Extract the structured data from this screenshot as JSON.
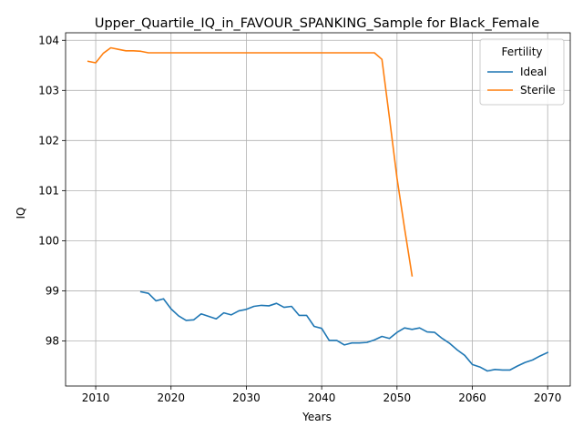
{
  "chart_data": {
    "type": "line",
    "title": "Upper_Quartile_IQ_in_FAVOUR_SPANKING_Sample for Black_Female",
    "xlabel": "Years",
    "ylabel": "IQ",
    "xlim": [
      2006,
      2073
    ],
    "ylim": [
      97.1,
      104.15
    ],
    "xticks": [
      2010,
      2020,
      2030,
      2040,
      2050,
      2060,
      2070
    ],
    "yticks": [
      98,
      99,
      100,
      101,
      102,
      103,
      104
    ],
    "grid": true,
    "legend": {
      "title": "Fertility",
      "placement": "top-right"
    },
    "series": [
      {
        "name": "Ideal",
        "color": "#1f77b4",
        "x": [
          2016,
          2017,
          2018,
          2019,
          2020,
          2021,
          2022,
          2023,
          2024,
          2025,
          2026,
          2027,
          2028,
          2029,
          2030,
          2031,
          2032,
          2033,
          2034,
          2035,
          2036,
          2037,
          2038,
          2039,
          2040,
          2041,
          2042,
          2043,
          2044,
          2045,
          2046,
          2047,
          2048,
          2049,
          2050,
          2051,
          2052,
          2053,
          2054,
          2055,
          2056,
          2057,
          2058,
          2059,
          2060,
          2061,
          2062,
          2063,
          2064,
          2065,
          2066,
          2067,
          2068,
          2069,
          2070
        ],
        "y": [
          98.98,
          98.95,
          98.8,
          98.84,
          98.64,
          98.5,
          98.41,
          98.42,
          98.54,
          98.49,
          98.44,
          98.56,
          98.52,
          98.6,
          98.63,
          98.69,
          98.71,
          98.7,
          98.75,
          98.67,
          98.69,
          98.51,
          98.51,
          98.29,
          98.25,
          98.01,
          98.01,
          97.92,
          97.96,
          97.96,
          97.97,
          98.02,
          98.09,
          98.05,
          98.17,
          98.26,
          98.23,
          98.26,
          98.18,
          98.17,
          98.05,
          97.95,
          97.82,
          97.71,
          97.53,
          97.48,
          97.4,
          97.43,
          97.42,
          97.42,
          97.5,
          97.57,
          97.62,
          97.7,
          97.77
        ]
      },
      {
        "name": "Sterile",
        "color": "#ff7f0e",
        "x": [
          2009,
          2010,
          2011,
          2012,
          2013,
          2014,
          2015,
          2016,
          2017,
          2018,
          2019,
          2020,
          2021,
          2022,
          2023,
          2024,
          2025,
          2026,
          2027,
          2028,
          2029,
          2030,
          2031,
          2032,
          2033,
          2034,
          2035,
          2036,
          2037,
          2038,
          2039,
          2040,
          2041,
          2042,
          2043,
          2044,
          2045,
          2046,
          2047,
          2048,
          2049,
          2050,
          2051,
          2052
        ],
        "y": [
          103.58,
          103.55,
          103.74,
          103.85,
          103.82,
          103.79,
          103.79,
          103.78,
          103.75,
          103.75,
          103.75,
          103.75,
          103.75,
          103.75,
          103.75,
          103.75,
          103.75,
          103.75,
          103.75,
          103.75,
          103.75,
          103.75,
          103.75,
          103.75,
          103.75,
          103.75,
          103.75,
          103.75,
          103.75,
          103.75,
          103.75,
          103.75,
          103.75,
          103.75,
          103.75,
          103.75,
          103.75,
          103.75,
          103.75,
          103.62,
          102.45,
          101.25,
          100.25,
          99.3
        ]
      }
    ]
  }
}
